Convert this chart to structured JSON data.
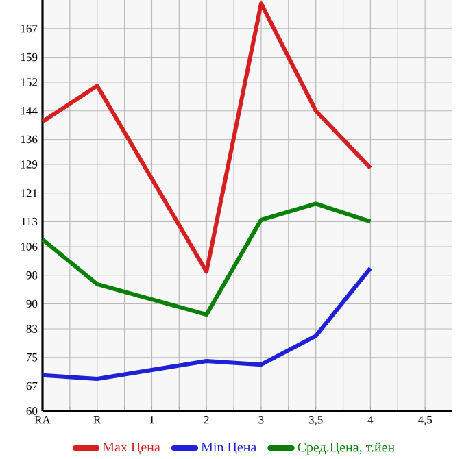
{
  "chart_data": {
    "type": "line",
    "categories": [
      "RA",
      "R",
      "1",
      "2",
      "3",
      "3,5",
      "4",
      "4,5"
    ],
    "series": [
      {
        "name": "Max Цена",
        "color": "#d42020",
        "values": [
          141,
          151,
          null,
          99,
          174,
          144,
          128,
          null
        ]
      },
      {
        "name": "Min Цена",
        "color": "#2020d4",
        "values": [
          70,
          69,
          null,
          74,
          73,
          81,
          100,
          null
        ]
      },
      {
        "name": "Сред.Цена, т.йен",
        "color": "#0a800a",
        "values": [
          108,
          95.5,
          null,
          87,
          113.5,
          118,
          113,
          null
        ]
      }
    ],
    "ylim": [
      60,
      175
    ],
    "yticks": [
      60,
      67,
      75,
      83,
      90,
      98,
      106,
      113,
      121,
      129,
      136,
      144,
      152,
      159,
      167
    ],
    "grid": true,
    "legend": "bottom",
    "line_style": "solid"
  }
}
